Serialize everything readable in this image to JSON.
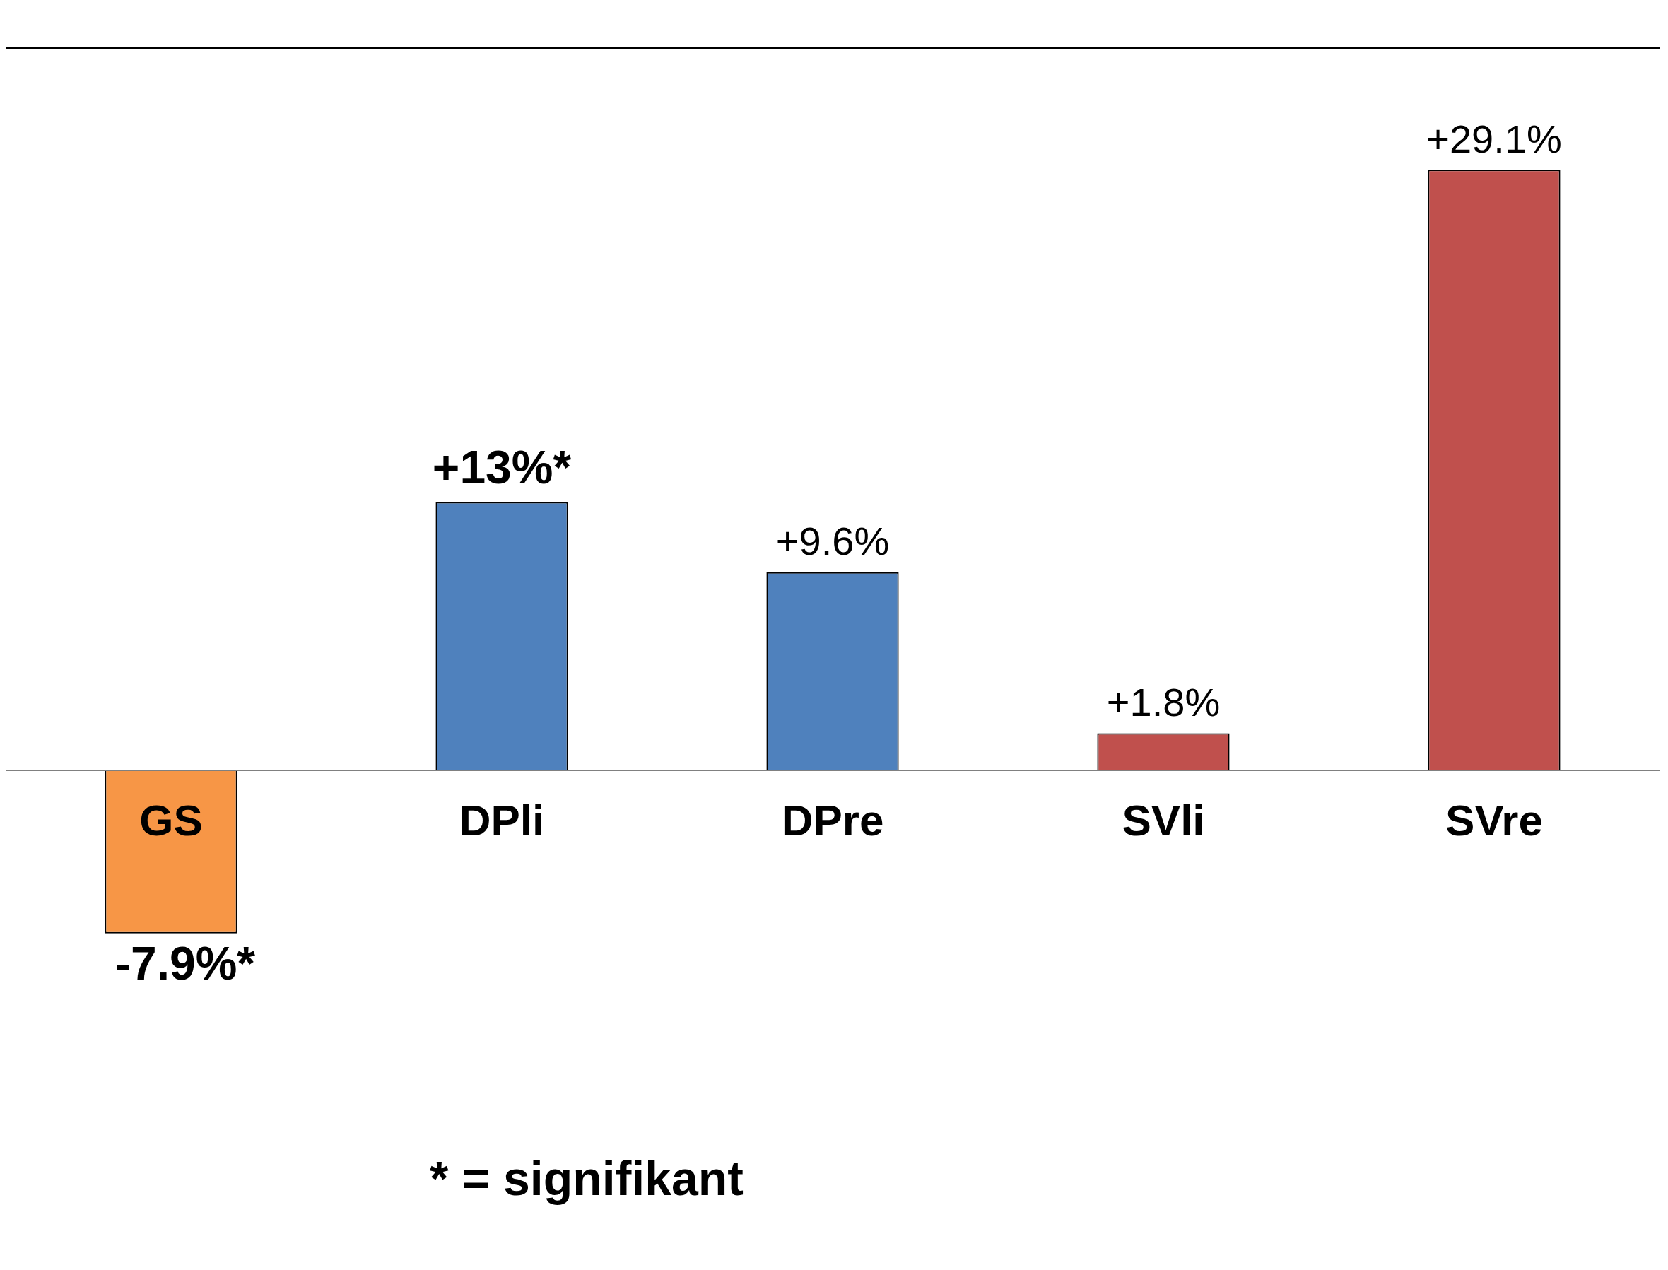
{
  "chart_data": {
    "type": "bar",
    "categories": [
      "GS",
      "DPli",
      "DPre",
      "SVli",
      "SVre"
    ],
    "values": [
      -7.9,
      13,
      9.6,
      1.8,
      29.1
    ],
    "colors": [
      "#f79646",
      "#4f81bd",
      "#4f81bd",
      "#c0504d",
      "#c0504d"
    ],
    "value_labels": [
      "-7.9%*",
      "+13%*",
      "+9.6%",
      "+1.8%",
      "+29.1%"
    ],
    "grid": false,
    "legend": false,
    "annotations": [
      "* = signifikant"
    ]
  }
}
